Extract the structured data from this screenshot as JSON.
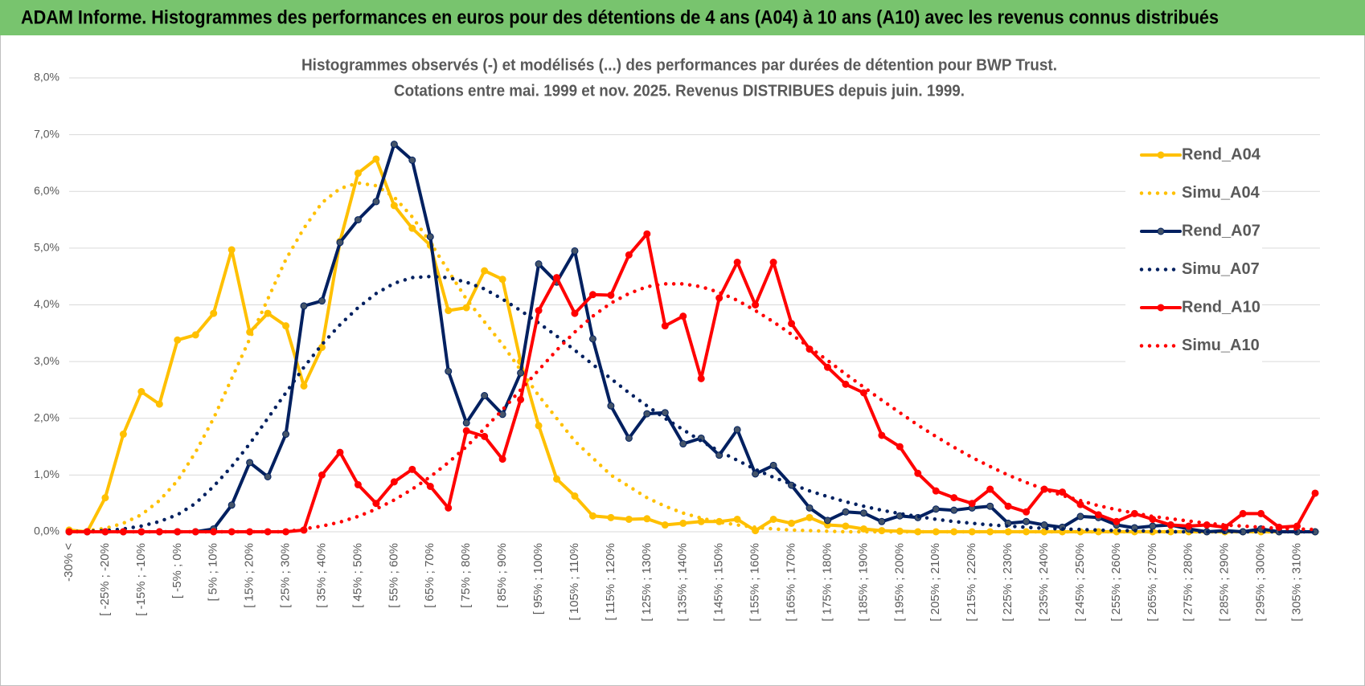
{
  "header": {
    "title": "ADAM Informe. Histogrammes des performances en euros pour des détentions de 4 ans (A04) à 10 ans (A10) avec les revenus connus distribués"
  },
  "chart_data": {
    "type": "line",
    "title": "Histogrammes observés (-) et modélisés (...) des performances par durées de détention pour BWP Trust.",
    "subtitle": "Cotations entre mai. 1999 et nov. 2025.  Revenus DISTRIBUES depuis juin. 1999.",
    "categories": [
      "-30% <",
      null,
      "[ -25% ; -20%",
      null,
      "[ -15% ; -10%",
      null,
      "[ -5% ; 0%",
      null,
      "[ 5% ; 10%",
      null,
      "[ 15% ; 20%",
      null,
      "[ 25% ; 30%",
      null,
      "[ 35% ; 40%",
      null,
      "[ 45% ; 50%",
      null,
      "[ 55% ; 60%",
      null,
      "[ 65% ; 70%",
      null,
      "[ 75% ; 80%",
      null,
      "[ 85% ; 90%",
      null,
      "[ 95% ; 100%",
      null,
      "[ 105% ; 110%",
      null,
      "[ 115% ; 120%",
      null,
      "[ 125% ; 130%",
      null,
      "[ 135% ; 140%",
      null,
      "[ 145% ; 150%",
      null,
      "[ 155% ; 160%",
      null,
      "[ 165% ; 170%",
      null,
      "[ 175% ; 180%",
      null,
      "[ 185% ; 190%",
      null,
      "[ 195% ; 200%",
      null,
      "[ 205% ; 210%",
      null,
      "[ 215% ; 220%",
      null,
      "[ 225% ; 230%",
      null,
      "[ 235% ; 240%",
      null,
      "[ 245% ; 250%",
      null,
      "[ 255% ; 260%",
      null,
      "[ 265% ; 270%",
      null,
      "[ 275% ; 280%",
      null,
      "[ 285% ; 290%",
      null,
      "[ 295% ; 300%",
      null,
      "[ 305% ; 310%",
      null
    ],
    "series": [
      {
        "name": "Rend_A04",
        "color": "#ffc000",
        "style": "solid",
        "values": [
          0.03,
          0,
          0.6,
          1.72,
          2.47,
          2.25,
          3.38,
          3.47,
          3.85,
          4.97,
          3.52,
          3.85,
          3.63,
          2.57,
          3.25,
          5.12,
          6.32,
          6.57,
          5.75,
          5.35,
          5.05,
          3.9,
          3.95,
          4.6,
          4.45,
          3.0,
          1.87,
          0.93,
          0.63,
          0.28,
          0.25,
          0.22,
          0.23,
          0.12,
          0.15,
          0.18,
          0.18,
          0.22,
          0.02,
          0.22,
          0.15,
          0.25,
          0.12,
          0.1,
          0.05,
          0.02,
          0.01,
          0,
          0,
          0,
          0,
          0,
          0,
          0,
          0,
          0,
          0,
          0,
          0,
          0,
          0,
          0,
          0,
          0,
          0,
          0,
          0,
          0,
          0,
          0
        ]
      },
      {
        "name": "Simu_A04",
        "color": "#ffc000",
        "style": "dotted",
        "values": [
          0,
          0.02,
          0.06,
          0.15,
          0.3,
          0.55,
          0.9,
          1.4,
          2.0,
          2.7,
          3.4,
          4.1,
          4.8,
          5.35,
          5.8,
          6.05,
          6.15,
          6.1,
          5.9,
          5.55,
          5.1,
          4.6,
          4.1,
          3.7,
          3.3,
          2.85,
          2.4,
          2.0,
          1.6,
          1.3,
          1.0,
          0.8,
          0.6,
          0.45,
          0.33,
          0.24,
          0.17,
          0.12,
          0.08,
          0.05,
          0.03,
          0.02,
          0.01,
          0,
          0,
          0,
          0,
          0,
          0,
          0,
          0,
          0,
          0,
          0,
          0,
          0,
          0,
          0,
          0,
          0,
          0,
          0,
          0,
          0,
          0,
          0,
          0,
          0,
          0,
          0
        ]
      },
      {
        "name": "Rend_A07",
        "color": "#002060",
        "style": "solid",
        "values": [
          0,
          0,
          0,
          0,
          0,
          0,
          0,
          0,
          0.05,
          0.47,
          1.22,
          0.97,
          1.72,
          3.98,
          4.07,
          5.1,
          5.5,
          5.82,
          6.83,
          6.55,
          5.2,
          2.83,
          1.92,
          2.4,
          2.07,
          2.8,
          4.72,
          4.4,
          4.95,
          3.4,
          2.22,
          1.65,
          2.08,
          2.1,
          1.55,
          1.65,
          1.35,
          1.8,
          1.02,
          1.17,
          0.82,
          0.42,
          0.2,
          0.35,
          0.33,
          0.18,
          0.28,
          0.25,
          0.4,
          0.38,
          0.42,
          0.45,
          0.15,
          0.18,
          0.12,
          0.08,
          0.27,
          0.25,
          0.12,
          0.07,
          0.1,
          0.12,
          0.05,
          0,
          0.02,
          0,
          0.05,
          0,
          0,
          0
        ]
      },
      {
        "name": "Simu_A07",
        "color": "#002060",
        "style": "dotted",
        "values": [
          0,
          0.01,
          0.02,
          0.05,
          0.1,
          0.18,
          0.3,
          0.5,
          0.8,
          1.15,
          1.55,
          2.0,
          2.45,
          2.9,
          3.3,
          3.65,
          3.95,
          4.2,
          4.38,
          4.48,
          4.5,
          4.48,
          4.4,
          4.28,
          4.1,
          3.9,
          3.68,
          3.45,
          3.2,
          2.95,
          2.7,
          2.45,
          2.22,
          2.0,
          1.8,
          1.6,
          1.42,
          1.26,
          1.1,
          0.96,
          0.84,
          0.72,
          0.62,
          0.53,
          0.45,
          0.38,
          0.32,
          0.27,
          0.22,
          0.18,
          0.15,
          0.12,
          0.1,
          0.08,
          0.06,
          0.05,
          0.04,
          0.03,
          0.02,
          0.02,
          0.01,
          0,
          0,
          0,
          0,
          0,
          0,
          0,
          0,
          0
        ]
      },
      {
        "name": "Rend_A10",
        "color": "#ff0000",
        "style": "solid",
        "values": [
          0,
          0,
          0,
          0,
          0,
          0,
          0,
          0,
          0,
          0,
          0,
          0,
          0,
          0.03,
          1.0,
          1.4,
          0.83,
          0.5,
          0.88,
          1.1,
          0.8,
          0.42,
          1.78,
          1.68,
          1.28,
          2.33,
          3.9,
          4.48,
          3.85,
          4.18,
          4.17,
          4.88,
          5.25,
          3.63,
          3.8,
          2.7,
          4.12,
          4.75,
          4.0,
          4.75,
          3.67,
          3.22,
          2.9,
          2.6,
          2.45,
          1.7,
          1.5,
          1.03,
          0.72,
          0.6,
          0.5,
          0.75,
          0.45,
          0.35,
          0.75,
          0.7,
          0.48,
          0.3,
          0.18,
          0.32,
          0.22,
          0.12,
          0.1,
          0.12,
          0.08,
          0.32,
          0.32,
          0.08,
          0.1,
          0.68
        ]
      },
      {
        "name": "Simu_A10",
        "color": "#ff0000",
        "style": "dotted",
        "values": [
          0,
          0,
          0,
          0,
          0,
          0,
          0,
          0,
          0,
          0,
          0,
          0,
          0,
          0.05,
          0.1,
          0.17,
          0.27,
          0.4,
          0.56,
          0.75,
          0.97,
          1.22,
          1.5,
          1.82,
          2.15,
          2.5,
          2.85,
          3.2,
          3.52,
          3.8,
          4.03,
          4.2,
          4.32,
          4.37,
          4.37,
          4.32,
          4.22,
          4.08,
          3.9,
          3.7,
          3.48,
          3.25,
          3.02,
          2.78,
          2.55,
          2.32,
          2.1,
          1.88,
          1.68,
          1.49,
          1.31,
          1.15,
          1.0,
          0.87,
          0.75,
          0.64,
          0.55,
          0.46,
          0.39,
          0.33,
          0.27,
          0.23,
          0.19,
          0.15,
          0.12,
          0.1,
          0.08,
          0.06,
          0.05,
          0.04
        ]
      }
    ],
    "ylim": [
      0,
      8
    ],
    "yticks": [
      {
        "value": 0,
        "label": "0,0%"
      },
      {
        "value": 1,
        "label": "1,0%"
      },
      {
        "value": 2,
        "label": "2,0%"
      },
      {
        "value": 3,
        "label": "3,0%"
      },
      {
        "value": 4,
        "label": "4,0%"
      },
      {
        "value": 5,
        "label": "5,0%"
      },
      {
        "value": 6,
        "label": "6,0%"
      },
      {
        "value": 7,
        "label": "7,0%"
      },
      {
        "value": 8,
        "label": "8,0%"
      }
    ],
    "grid": true,
    "legend": "right"
  }
}
